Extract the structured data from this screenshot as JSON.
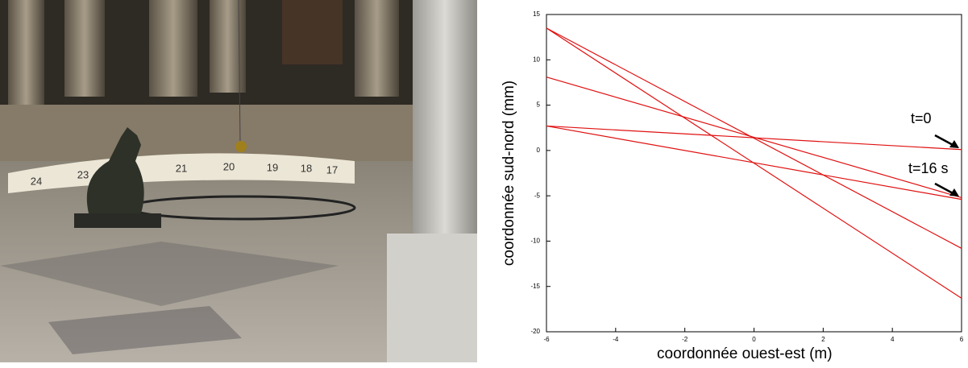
{
  "photo": {
    "scale_labels": [
      "24",
      "23",
      "21",
      "20",
      "19",
      "18",
      "17"
    ]
  },
  "chart_data": {
    "type": "line",
    "xlabel": "coordonnée ouest-est (m)",
    "ylabel": "coordonnée sud-nord (mm)",
    "x": [
      -6,
      6
    ],
    "series": [
      {
        "color": "#e01010",
        "values": [
          2.7,
          0.1
        ]
      },
      {
        "color": "#e01010",
        "values": [
          8.1,
          -5.2
        ]
      },
      {
        "color": "#e01010",
        "values": [
          2.7,
          -5.4
        ]
      },
      {
        "color": "#e01010",
        "values": [
          13.5,
          -10.8
        ]
      },
      {
        "color": "#e01010",
        "values": [
          13.5,
          -16.3
        ]
      }
    ],
    "annotations": [
      {
        "text": "t=0"
      },
      {
        "text": "t=16 s"
      }
    ],
    "xlim": [
      -6,
      6
    ],
    "xticks": [
      -6,
      -4,
      -2,
      0,
      2,
      4,
      6
    ],
    "ylim": [
      -20,
      15
    ],
    "yticks": [
      -20,
      -15,
      -10,
      -5,
      0,
      5,
      10,
      15
    ]
  }
}
